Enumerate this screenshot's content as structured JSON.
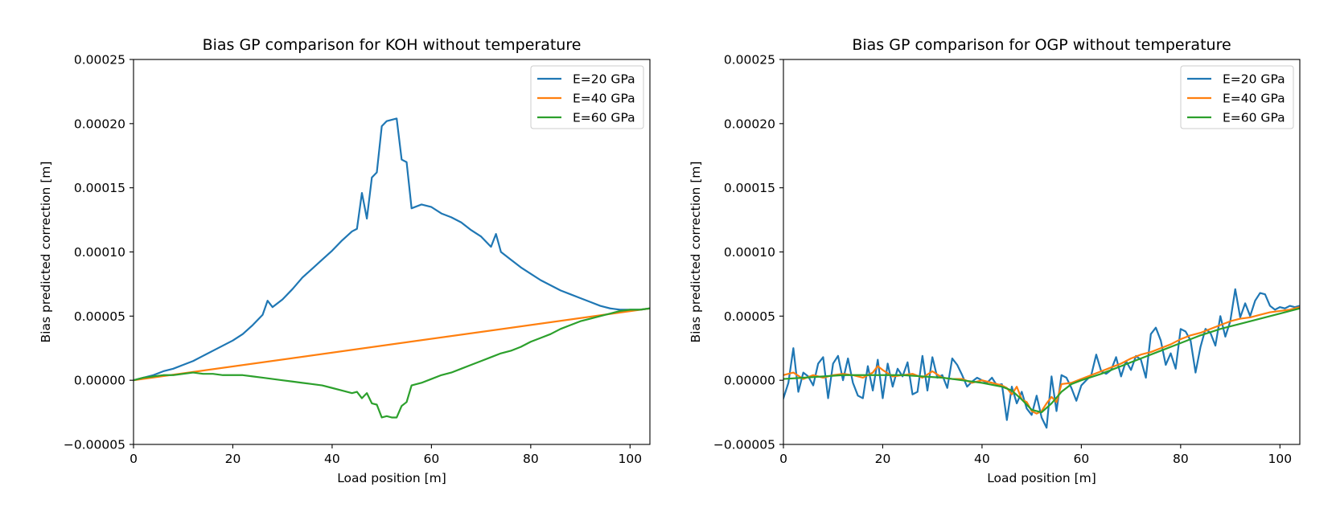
{
  "chart_data": [
    {
      "type": "line",
      "title": "Bias GP comparison for KOH without temperature",
      "xlabel": "Load position [m]",
      "ylabel": "Bias predicted correction [m]",
      "xlim": [
        0,
        104
      ],
      "ylim": [
        -5e-05,
        0.00025
      ],
      "xticks": [
        0,
        20,
        40,
        60,
        80,
        100
      ],
      "xtick_labels": [
        "0",
        "20",
        "40",
        "60",
        "80",
        "100"
      ],
      "yticks": [
        -5e-05,
        0,
        5e-05,
        0.0001,
        0.00015,
        0.0002,
        0.00025
      ],
      "ytick_labels": [
        "−0.00005",
        "0.00000",
        "0.00005",
        "0.00010",
        "0.00015",
        "0.00020",
        "0.00025"
      ],
      "legend_position": "top-right",
      "series": [
        {
          "name": "E=20 GPa",
          "color": "#1f77b4",
          "x": [
            0,
            2,
            4,
            6,
            8,
            10,
            12,
            14,
            16,
            18,
            20,
            22,
            24,
            26,
            27,
            28,
            30,
            32,
            34,
            36,
            38,
            40,
            42,
            44,
            45,
            46,
            47,
            48,
            49,
            50,
            51,
            52,
            53,
            54,
            55,
            56,
            58,
            60,
            62,
            64,
            66,
            68,
            70,
            72,
            73,
            74,
            76,
            78,
            80,
            82,
            84,
            86,
            88,
            90,
            92,
            94,
            96,
            98,
            100,
            102,
            104
          ],
          "y": [
            0,
            2e-06,
            4e-06,
            7e-06,
            9e-06,
            1.2e-05,
            1.5e-05,
            1.9e-05,
            2.3e-05,
            2.7e-05,
            3.1e-05,
            3.6e-05,
            4.3e-05,
            5.1e-05,
            6.2e-05,
            5.7e-05,
            6.3e-05,
            7.1e-05,
            8e-05,
            8.7e-05,
            9.4e-05,
            0.000101,
            0.000109,
            0.000116,
            0.000118,
            0.000146,
            0.000126,
            0.000158,
            0.000162,
            0.000198,
            0.000202,
            0.000203,
            0.000204,
            0.000172,
            0.00017,
            0.000134,
            0.000137,
            0.000135,
            0.00013,
            0.000127,
            0.000123,
            0.000117,
            0.000112,
            0.000104,
            0.000114,
            0.0001,
            9.4e-05,
            8.8e-05,
            8.3e-05,
            7.8e-05,
            7.4e-05,
            7e-05,
            6.7e-05,
            6.4e-05,
            6.1e-05,
            5.8e-05,
            5.6e-05,
            5.5e-05,
            5.5e-05,
            5.5e-05,
            5.6e-05
          ]
        },
        {
          "name": "E=40 GPa",
          "color": "#ff7f0e",
          "x": [
            0,
            104
          ],
          "y": [
            0,
            5.6e-05
          ]
        },
        {
          "name": "E=60 GPa",
          "color": "#2ca02c",
          "x": [
            0,
            2,
            4,
            6,
            8,
            10,
            12,
            14,
            16,
            18,
            20,
            22,
            24,
            26,
            28,
            30,
            32,
            34,
            36,
            38,
            40,
            42,
            44,
            45,
            46,
            47,
            48,
            49,
            50,
            51,
            52,
            53,
            54,
            55,
            56,
            58,
            60,
            62,
            64,
            66,
            68,
            70,
            72,
            74,
            76,
            78,
            80,
            82,
            84,
            86,
            88,
            90,
            92,
            94,
            96,
            98,
            100,
            102,
            104
          ],
          "y": [
            0,
            2e-06,
            3e-06,
            4e-06,
            4e-06,
            5e-06,
            6e-06,
            5e-06,
            5e-06,
            4e-06,
            4e-06,
            4e-06,
            3e-06,
            2e-06,
            1e-06,
            0.0,
            -1e-06,
            -2e-06,
            -3e-06,
            -4e-06,
            -6e-06,
            -8e-06,
            -1e-05,
            -9e-06,
            -1.4e-05,
            -1e-05,
            -1.8e-05,
            -1.9e-05,
            -2.9e-05,
            -2.8e-05,
            -2.9e-05,
            -2.9e-05,
            -2e-05,
            -1.7e-05,
            -4e-06,
            -2e-06,
            1e-06,
            4e-06,
            6e-06,
            9e-06,
            1.2e-05,
            1.5e-05,
            1.8e-05,
            2.1e-05,
            2.3e-05,
            2.6e-05,
            3e-05,
            3.3e-05,
            3.6e-05,
            4e-05,
            4.3e-05,
            4.6e-05,
            4.8e-05,
            5e-05,
            5.2e-05,
            5.4e-05,
            5.5e-05,
            5.5e-05,
            5.6e-05
          ]
        }
      ]
    },
    {
      "type": "line",
      "title": "Bias GP comparison for OGP without temperature",
      "xlabel": "Load position [m]",
      "ylabel": "Bias predicted correction [m]",
      "xlim": [
        0,
        104
      ],
      "ylim": [
        -5e-05,
        0.00025
      ],
      "xticks": [
        0,
        20,
        40,
        60,
        80,
        100
      ],
      "xtick_labels": [
        "0",
        "20",
        "40",
        "60",
        "80",
        "100"
      ],
      "yticks": [
        -5e-05,
        0,
        5e-05,
        0.0001,
        0.00015,
        0.0002,
        0.00025
      ],
      "ytick_labels": [
        "−0.00005",
        "0.00000",
        "0.00005",
        "0.00010",
        "0.00015",
        "0.00020",
        "0.00025"
      ],
      "legend_position": "top-right",
      "series": [
        {
          "name": "E=20 GPa",
          "color": "#1f77b4",
          "x": [
            0,
            1,
            2,
            3,
            4,
            5,
            6,
            7,
            8,
            9,
            10,
            11,
            12,
            13,
            14,
            15,
            16,
            17,
            18,
            19,
            20,
            21,
            22,
            23,
            24,
            25,
            26,
            27,
            28,
            29,
            30,
            31,
            32,
            33,
            34,
            35,
            36,
            37,
            38,
            39,
            40,
            41,
            42,
            43,
            44,
            45,
            46,
            47,
            48,
            49,
            50,
            51,
            52,
            53,
            54,
            55,
            56,
            57,
            58,
            59,
            60,
            61,
            62,
            63,
            64,
            65,
            66,
            67,
            68,
            69,
            70,
            71,
            72,
            73,
            74,
            75,
            76,
            77,
            78,
            79,
            80,
            81,
            82,
            83,
            84,
            85,
            86,
            87,
            88,
            89,
            90,
            91,
            92,
            93,
            94,
            95,
            96,
            97,
            98,
            99,
            100,
            101,
            102,
            103,
            104
          ],
          "y": [
            -1.4e-05,
            -2e-06,
            2.5e-05,
            -9e-06,
            6e-06,
            3e-06,
            -4e-06,
            1.3e-05,
            1.8e-05,
            -1.4e-05,
            1.3e-05,
            1.9e-05,
            0.0,
            1.7e-05,
            -2e-06,
            -1.2e-05,
            -1.4e-05,
            1.1e-05,
            -8e-06,
            1.6e-05,
            -1.4e-05,
            1.3e-05,
            -5e-06,
            9e-06,
            3e-06,
            1.4e-05,
            -1.1e-05,
            -9e-06,
            1.9e-05,
            -8e-06,
            1.8e-05,
            2e-06,
            4e-06,
            -6e-06,
            1.7e-05,
            1.2e-05,
            4e-06,
            -5e-06,
            -1e-06,
            2e-06,
            0.0,
            -2e-06,
            2e-06,
            -4e-06,
            -3e-06,
            -3.1e-05,
            -5e-06,
            -1.8e-05,
            -9e-06,
            -2.2e-05,
            -2.7e-05,
            -1.2e-05,
            -2.9e-05,
            -3.7e-05,
            3e-06,
            -2.4e-05,
            4e-06,
            2e-06,
            -6e-06,
            -1.6e-05,
            -4e-06,
            0.0,
            4e-06,
            2e-05,
            7e-06,
            5e-06,
            8e-06,
            1.8e-05,
            3e-06,
            1.5e-05,
            8e-06,
            1.9e-05,
            1.6e-05,
            2e-06,
            3.6e-05,
            4.1e-05,
            3.1e-05,
            1.2e-05,
            2.1e-05,
            9e-06,
            4e-05,
            3.8e-05,
            3.1e-05,
            6e-06,
            2.6e-05,
            4e-05,
            3.7e-05,
            2.7e-05,
            5e-05,
            3.4e-05,
            4.6e-05,
            7.1e-05,
            4.9e-05,
            6e-05,
            5e-05,
            6.2e-05,
            6.8e-05,
            6.7e-05,
            5.8e-05,
            5.5e-05,
            5.7e-05,
            5.6e-05,
            5.8e-05,
            5.7e-05,
            5.8e-05
          ]
        },
        {
          "name": "E=40 GPa",
          "color": "#ff7f0e",
          "x": [
            0,
            2,
            4,
            6,
            8,
            10,
            12,
            14,
            16,
            18,
            19,
            20,
            22,
            24,
            26,
            28,
            30,
            32,
            34,
            36,
            38,
            40,
            42,
            44,
            45,
            46,
            47,
            48,
            49,
            50,
            51,
            52,
            53,
            54,
            55,
            56,
            58,
            60,
            62,
            64,
            66,
            68,
            70,
            72,
            74,
            76,
            78,
            80,
            82,
            84,
            86,
            88,
            90,
            92,
            94,
            96,
            98,
            100,
            102,
            104
          ],
          "y": [
            4e-06,
            6e-06,
            1e-06,
            4e-06,
            2e-06,
            4e-06,
            5e-06,
            4e-06,
            2e-06,
            6e-06,
            1.1e-05,
            8e-06,
            3e-06,
            4e-06,
            5e-06,
            2e-06,
            7e-06,
            2e-06,
            1e-06,
            1e-06,
            -2e-06,
            0.0,
            -2e-06,
            -4e-06,
            -6e-06,
            -1.1e-05,
            -5e-06,
            -1.5e-05,
            -1.7e-05,
            -2.4e-05,
            -2.6e-05,
            -2.4e-05,
            -1.8e-05,
            -1.3e-05,
            -1.7e-05,
            -3e-06,
            -2e-06,
            1e-06,
            4e-06,
            7e-06,
            1e-05,
            1.3e-05,
            1.7e-05,
            2e-05,
            2.2e-05,
            2.5e-05,
            2.8e-05,
            3.2e-05,
            3.5e-05,
            3.7e-05,
            4e-05,
            4.3e-05,
            4.6e-05,
            4.8e-05,
            4.9e-05,
            5.1e-05,
            5.3e-05,
            5.4e-05,
            5.5e-05,
            5.7e-05
          ]
        },
        {
          "name": "E=60 GPa",
          "color": "#2ca02c",
          "x": [
            0,
            4,
            8,
            12,
            16,
            20,
            24,
            28,
            32,
            36,
            40,
            44,
            46,
            48,
            50,
            52,
            54,
            56,
            58,
            60,
            64,
            68,
            72,
            76,
            80,
            84,
            88,
            92,
            96,
            100,
            104
          ],
          "y": [
            1e-06,
            2e-06,
            3e-06,
            4e-06,
            4e-06,
            4e-06,
            4e-06,
            3e-06,
            2e-06,
            0.0,
            -2e-06,
            -5e-06,
            -8e-06,
            -1.5e-05,
            -2.3e-05,
            -2.5e-05,
            -1.8e-05,
            -9e-06,
            -3e-06,
            0.0,
            5e-06,
            1.1e-05,
            1.7e-05,
            2.3e-05,
            2.9e-05,
            3.5e-05,
            4e-05,
            4.4e-05,
            4.8e-05,
            5.2e-05,
            5.6e-05
          ]
        }
      ]
    }
  ]
}
